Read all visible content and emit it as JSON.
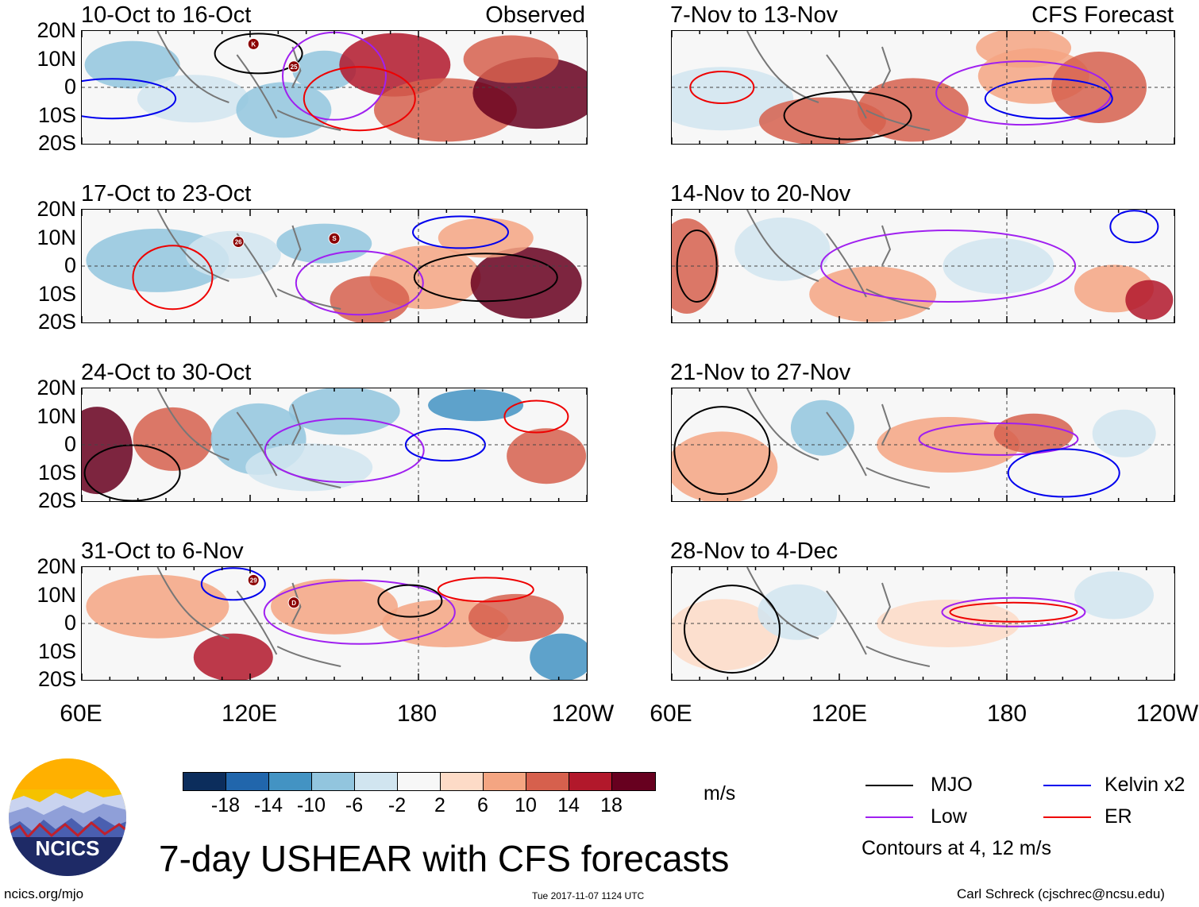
{
  "figure": {
    "title": "7-day USHEAR with CFS forecasts",
    "source_url": "ncics.org/mjo",
    "timestamp": "Tue 2017-11-07 1124 UTC",
    "credit": "Carl Schreck (cjschrec@ncsu.edu)",
    "logo_text": "NCICS",
    "observed_label": "Observed",
    "forecast_label": "CFS Forecast"
  },
  "axes": {
    "y_ticks": [
      "20N",
      "10N",
      "0",
      "10S",
      "20S"
    ],
    "x_ticks": [
      "60E",
      "120E",
      "180",
      "120W"
    ]
  },
  "panels_left": [
    {
      "title": "10-Oct to 16-Oct",
      "storms": [
        "K",
        "25"
      ]
    },
    {
      "title": "17-Oct to 23-Oct",
      "storms": [
        "26",
        "S"
      ]
    },
    {
      "title": "24-Oct to 30-Oct",
      "storms": []
    },
    {
      "title": "31-Oct to 6-Nov",
      "storms": [
        "29",
        "D"
      ]
    }
  ],
  "panels_right": [
    {
      "title": "7-Nov to 13-Nov"
    },
    {
      "title": "14-Nov to 20-Nov"
    },
    {
      "title": "21-Nov to 27-Nov"
    },
    {
      "title": "28-Nov to 4-Dec"
    }
  ],
  "colorbar": {
    "units": "m/s",
    "ticks": [
      "-18",
      "-14",
      "-10",
      "-6",
      "-2",
      "2",
      "6",
      "10",
      "14",
      "18"
    ],
    "colors": [
      "#0c2d5c",
      "#2166ac",
      "#4393c3",
      "#92c5de",
      "#d1e5f0",
      "#f7f7f7",
      "#fddbc7",
      "#f4a582",
      "#d6604d",
      "#b2182b",
      "#67001f"
    ]
  },
  "legend": {
    "items": [
      {
        "label": "MJO",
        "color": "#000000"
      },
      {
        "label": "Kelvin x2",
        "color": "#0000ee"
      },
      {
        "label": "Low",
        "color": "#a020f0"
      },
      {
        "label": "ER",
        "color": "#ee0000"
      }
    ],
    "note": "Contours at 4, 12 m/s"
  }
}
